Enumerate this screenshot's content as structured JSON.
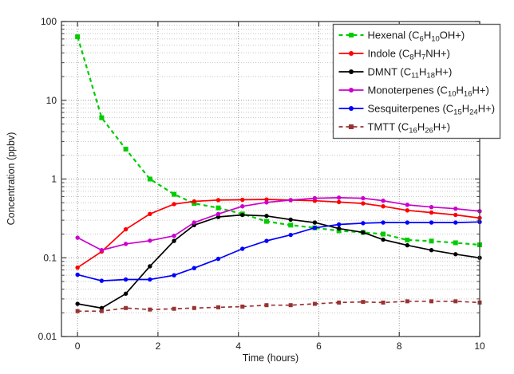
{
  "figure": {
    "background": "#ffffff"
  },
  "axes": {
    "xlabel": "Time (hours)",
    "ylabel": "Concentration (ppbv)",
    "xlim": [
      -0.4,
      10
    ],
    "ylim": [
      0.01,
      100
    ],
    "y_scale": "log",
    "x_ticks": [
      0,
      2,
      4,
      6,
      8,
      10
    ],
    "x_tick_labels": [
      "0",
      "2",
      "4",
      "6",
      "8",
      "10"
    ],
    "y_ticks": [
      100,
      10,
      1,
      0.1,
      0.01
    ],
    "y_tick_labels": [
      "100",
      "10",
      "1",
      "0.1",
      "0.01"
    ],
    "grid": {
      "major": true,
      "minor": true,
      "style": "dotted"
    }
  },
  "legend": {
    "position": "top-right",
    "background": "#ffffff",
    "border_color": "#606060"
  },
  "chart_data": {
    "type": "line",
    "x": [
      0,
      0.6,
      1.2,
      1.8,
      2.4,
      2.9,
      3.5,
      4.1,
      4.7,
      5.3,
      5.9,
      6.5,
      7.1,
      7.6,
      8.2,
      8.8,
      9.4,
      10
    ],
    "series": [
      {
        "id": "hexenal",
        "name": "Hexenal",
        "formula": "C6H10OH+",
        "label_parts": [
          "Hexenal (C",
          "6",
          "H",
          "10",
          "OH+)"
        ],
        "color": "#00cc00",
        "line_style": "dashed",
        "marker": "square",
        "values": [
          64,
          6.0,
          2.4,
          1.0,
          0.64,
          0.49,
          0.43,
          0.36,
          0.29,
          0.26,
          0.24,
          0.22,
          0.21,
          0.2,
          0.168,
          0.163,
          0.155,
          0.146
        ]
      },
      {
        "id": "indole",
        "name": "Indole",
        "formula": "C8H7NH+",
        "label_parts": [
          "Indole (C",
          "8",
          "H",
          "7",
          "NH+)"
        ],
        "color": "#ff0000",
        "line_style": "solid",
        "marker": "circle",
        "values": [
          0.075,
          0.12,
          0.23,
          0.36,
          0.48,
          0.52,
          0.54,
          0.545,
          0.55,
          0.54,
          0.53,
          0.51,
          0.49,
          0.45,
          0.4,
          0.375,
          0.35,
          0.32
        ]
      },
      {
        "id": "dmnt",
        "name": "DMNT",
        "formula": "C11H18H+",
        "label_parts": [
          "DMNT (C",
          "11",
          "H",
          "18",
          "H+)"
        ],
        "color": "#000000",
        "line_style": "solid",
        "marker": "circle",
        "values": [
          0.026,
          0.023,
          0.035,
          0.078,
          0.164,
          0.26,
          0.33,
          0.35,
          0.34,
          0.305,
          0.28,
          0.235,
          0.21,
          0.17,
          0.144,
          0.125,
          0.111,
          0.1
        ]
      },
      {
        "id": "monoterpenes",
        "name": "Monoterpenes",
        "formula": "C10H16H+",
        "label_parts": [
          "Monoterpenes (C",
          "10",
          "H",
          "16",
          "H+)"
        ],
        "color": "#cc00cc",
        "line_style": "solid",
        "marker": "circle",
        "values": [
          0.18,
          0.125,
          0.15,
          0.165,
          0.19,
          0.28,
          0.36,
          0.45,
          0.505,
          0.54,
          0.57,
          0.58,
          0.57,
          0.53,
          0.47,
          0.44,
          0.42,
          0.39
        ]
      },
      {
        "id": "sesquiterpenes",
        "name": "Sesquiterpenes",
        "formula": "C15H24H+",
        "label_parts": [
          "Sesquiterpenes (C",
          "15",
          "H",
          "24",
          "H+)"
        ],
        "color": "#0000ff",
        "line_style": "solid",
        "marker": "circle",
        "values": [
          0.061,
          0.051,
          0.053,
          0.053,
          0.06,
          0.074,
          0.097,
          0.13,
          0.164,
          0.195,
          0.24,
          0.265,
          0.275,
          0.28,
          0.28,
          0.28,
          0.28,
          0.285
        ]
      },
      {
        "id": "tmtt",
        "name": "TMTT",
        "formula": "C16H26H+",
        "label_parts": [
          "TMTT (C",
          "16",
          "H",
          "26",
          "H+)"
        ],
        "color": "#993333",
        "line_style": "dashed",
        "marker": "square",
        "values": [
          0.021,
          0.021,
          0.023,
          0.022,
          0.0225,
          0.023,
          0.0235,
          0.024,
          0.025,
          0.025,
          0.026,
          0.027,
          0.0275,
          0.027,
          0.028,
          0.028,
          0.028,
          0.027
        ]
      }
    ]
  }
}
